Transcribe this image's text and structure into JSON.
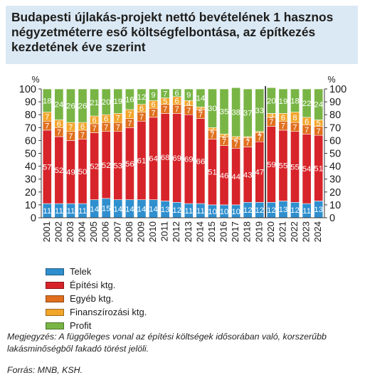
{
  "title": "Budapesti újlakás-projekt nettó bevételének 1 hasznos négyzetméterre eső költségfelbontása, az építkezés kezdetének éve szerint",
  "note": "Megjegyzés: A függőleges vonal az építési költségek idősorában való, korszerűbb lakásminőségből fakadó törést jelöli.",
  "source": "Forrás: MNB, KSH.",
  "chart_data": {
    "type": "bar",
    "stacked": true,
    "y_unit_label": "%",
    "ylim": [
      0,
      100
    ],
    "yticks": [
      0,
      10,
      20,
      30,
      40,
      50,
      60,
      70,
      80,
      90,
      100
    ],
    "grid": false,
    "legend_position": "bottom-left",
    "categories": [
      "2001",
      "2002",
      "2003",
      "2004",
      "2005",
      "2006",
      "2007",
      "2008",
      "2009",
      "2010",
      "2011",
      "2012",
      "2013",
      "2014",
      "2015",
      "2016",
      "2017",
      "2018",
      "2019",
      "2020",
      "2021",
      "2022",
      "2023",
      "2024"
    ],
    "series": [
      {
        "name": "Telek",
        "color": "#2f8fce",
        "values": [
          11,
          11,
          11,
          11,
          14,
          15,
          14,
          14,
          14,
          14,
          13,
          12,
          11,
          11,
          10,
          10,
          10,
          12,
          12,
          12,
          13,
          12,
          11,
          13
        ],
        "labels": [
          "11",
          "11",
          "11",
          "11",
          "14",
          "15",
          "14",
          "14",
          "14",
          "14",
          "13",
          "12",
          "11",
          "11",
          "10",
          "10",
          "10",
          "12",
          "12",
          "12",
          "13",
          "12",
          "11",
          "13"
        ]
      },
      {
        "name": "Építési ktg.",
        "color": "#d7242a",
        "values": [
          57,
          52,
          49,
          50,
          52,
          52,
          53,
          56,
          61,
          64,
          68,
          69,
          69,
          66,
          51,
          46,
          44,
          43,
          47,
          59,
          55,
          55,
          54,
          51
        ],
        "labels": [
          "57",
          "52",
          "49",
          "50",
          "52",
          "52",
          "53",
          "56",
          "61",
          "64",
          "68",
          "69",
          "69",
          "66",
          "51",
          "46",
          "44",
          "43",
          "47",
          "59",
          "55",
          "55",
          "54",
          "51"
        ]
      },
      {
        "name": "Egyéb ktg.",
        "color": "#e06f1e",
        "values": [
          7,
          7,
          7,
          7,
          7,
          7,
          7,
          7,
          7,
          7,
          7,
          7,
          7,
          7,
          7,
          7,
          7,
          7,
          7,
          7,
          7,
          7,
          7,
          7
        ],
        "labels": [
          "7",
          "7",
          "7",
          "7",
          "7",
          "7",
          "7",
          "7",
          "7",
          "7",
          "7",
          "7",
          "7",
          "7",
          "7",
          "7",
          "7",
          "7",
          "7",
          "7",
          "7",
          "7",
          "7",
          "7"
        ]
      },
      {
        "name": "Finanszírozási ktg.",
        "color": "#f2a52b",
        "values": [
          7,
          6,
          7,
          6,
          6,
          6,
          7,
          7,
          6,
          6,
          5,
          6,
          4,
          2,
          2,
          2,
          2,
          1,
          1,
          3,
          6,
          8,
          6,
          5
        ],
        "labels": [
          "7",
          "6",
          "7",
          "6",
          "6",
          "6",
          "7",
          "7",
          "6",
          "6",
          "5",
          "6",
          "4",
          "2",
          "2",
          "2",
          "2",
          "1",
          "1",
          "3",
          "6",
          "8",
          "6",
          "5"
        ]
      },
      {
        "name": "Profit",
        "color": "#78b545",
        "values": [
          18,
          24,
          26,
          26,
          21,
          20,
          19,
          16,
          12,
          9,
          7,
          6,
          9,
          14,
          30,
          35,
          38,
          37,
          33,
          20,
          19,
          18,
          22,
          24
        ],
        "labels": [
          "18",
          "24",
          "26",
          "26",
          "21",
          "20",
          "19",
          "16",
          "12",
          "9",
          "7",
          "6",
          "9",
          "14",
          "30",
          "35",
          "38",
          "37",
          "33",
          "20",
          "19",
          "18",
          "22",
          "24"
        ]
      }
    ],
    "break_line_between": [
      "2019",
      "2020"
    ]
  }
}
